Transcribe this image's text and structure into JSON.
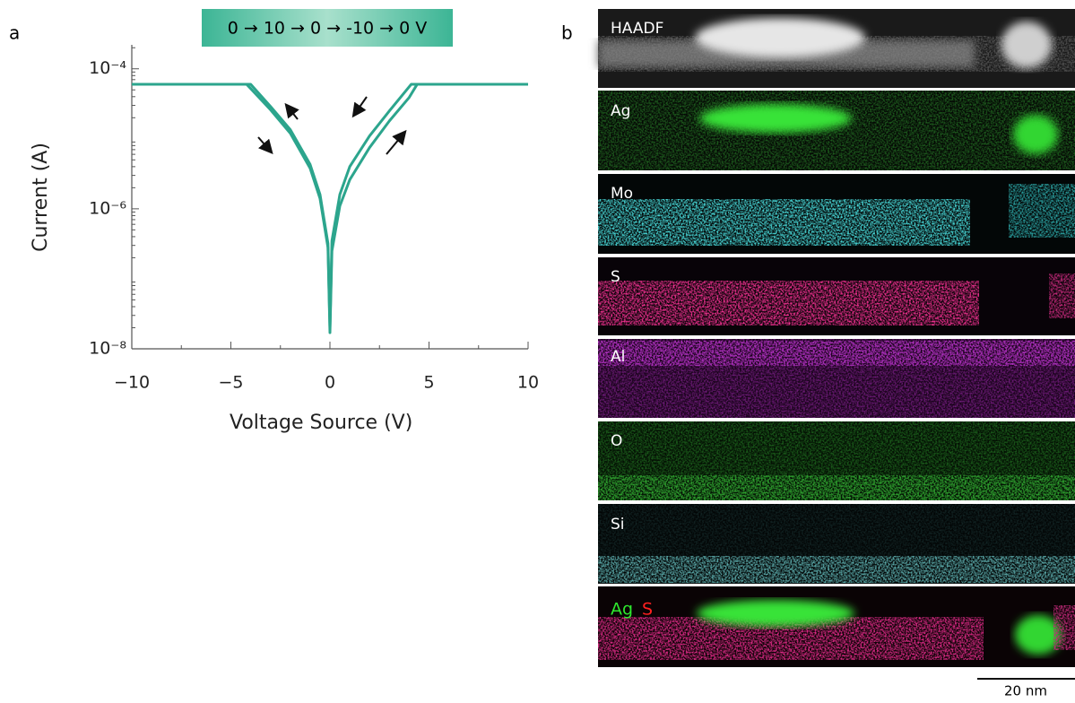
{
  "panel_labels": [
    "a",
    "b"
  ],
  "chart_data": {
    "type": "line",
    "title": "0 → 10 → 0 → -10 → 0 V",
    "x_label": "Voltage Source (V)",
    "y_label": "Current (A)",
    "log_y": true,
    "xlim": [
      -10,
      10
    ],
    "xticks": [
      {
        "value": -10,
        "label": "−10"
      },
      {
        "value": -5,
        "label": "−5"
      },
      0,
      5,
      10
    ],
    "ylim": [
      1e-08,
      0.00022
    ],
    "yticks": [
      {
        "value": 1e-08,
        "label": "10⁻⁸"
      },
      {
        "value": 1e-06,
        "label": "10⁻⁶"
      },
      {
        "value": 0.0001,
        "label": "10⁻⁴"
      }
    ],
    "series": [
      {
        "color": "#2ca58d",
        "x": [
          -10,
          -4.2,
          -3,
          -2,
          -1,
          -0.5,
          -0.1,
          0,
          0.1,
          0.5,
          1,
          2,
          3,
          4,
          4.4,
          10
        ],
        "values": [
          6e-05,
          6e-05,
          2.6e-05,
          1.2e-05,
          3.8e-06,
          1.4e-06,
          2.8e-07,
          1.7e-08,
          2.5e-07,
          1.1e-06,
          2.6e-06,
          7.5e-06,
          1.8e-05,
          3.9e-05,
          6e-05,
          6e-05
        ]
      },
      {
        "color": "#2ca58d",
        "x": [
          -10,
          -4,
          -3,
          -2,
          -1,
          -0.5,
          -0.1,
          0,
          0.1,
          0.5,
          1,
          2,
          3,
          4.1,
          10
        ],
        "values": [
          6e-05,
          6e-05,
          2.9e-05,
          1.35e-05,
          4.3e-06,
          1.6e-06,
          3.2e-07,
          2e-08,
          3.5e-07,
          1.6e-06,
          4e-06,
          1.1e-05,
          2.5e-05,
          6e-05,
          6e-05
        ]
      }
    ]
  },
  "panel_b": {
    "maps": [
      "HAADF",
      "Ag",
      "Mo",
      "S",
      "Al",
      "O",
      "Si"
    ],
    "overlay": [
      "Ag",
      "S"
    ],
    "scale_bar": "20 nm"
  }
}
